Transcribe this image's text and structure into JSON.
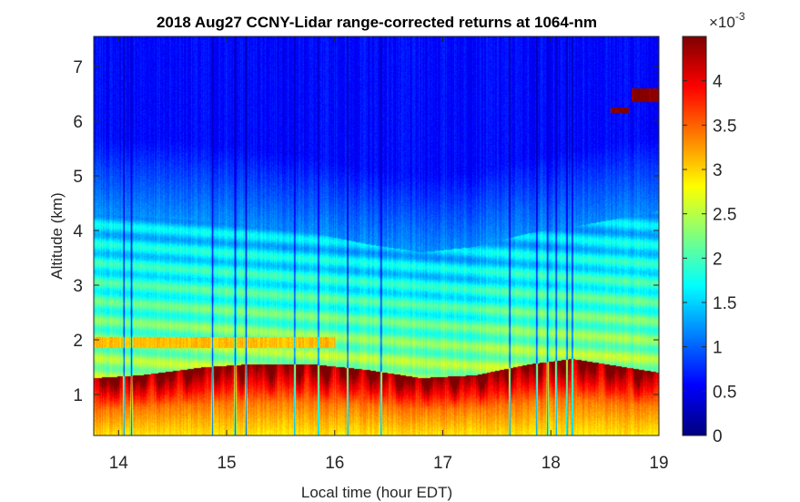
{
  "chart_data": {
    "type": "heatmap",
    "title": "2018 Aug27 CCNY-Lidar range-corrected returns at 1064-nm",
    "xlabel": "Local time (hour EDT)",
    "ylabel": "Altitude (km)",
    "xlim": [
      13.77,
      19.0
    ],
    "ylim": [
      0.25,
      7.55
    ],
    "x_ticks": [
      14,
      15,
      16,
      17,
      18,
      19
    ],
    "y_ticks": [
      1,
      2,
      3,
      4,
      5,
      6,
      7
    ],
    "colorbar": {
      "colormap": "jet",
      "range": [
        0,
        0.0045
      ],
      "tick_values": [
        0,
        0.5,
        1,
        1.5,
        2,
        2.5,
        3,
        3.5,
        4
      ],
      "tick_labels": [
        "0",
        "0.5",
        "1",
        "1.5",
        "2",
        "2.5",
        "3",
        "3.5",
        "4"
      ],
      "multiplier_base": "×10",
      "multiplier_exponent": "-3"
    },
    "features": {
      "boundary_layer_top_km": [
        [
          13.77,
          1.3
        ],
        [
          14.2,
          1.35
        ],
        [
          14.8,
          1.5
        ],
        [
          15.2,
          1.55
        ],
        [
          15.8,
          1.55
        ],
        [
          16.3,
          1.45
        ],
        [
          16.8,
          1.3
        ],
        [
          17.3,
          1.35
        ],
        [
          17.8,
          1.55
        ],
        [
          18.2,
          1.65
        ],
        [
          19.0,
          1.4
        ]
      ],
      "aerosol_layer_top_km": [
        [
          13.77,
          4.3
        ],
        [
          14.5,
          4.25
        ],
        [
          15.2,
          4.1
        ],
        [
          15.8,
          3.95
        ],
        [
          16.3,
          3.75
        ],
        [
          16.8,
          3.6
        ],
        [
          17.3,
          3.7
        ],
        [
          17.8,
          3.95
        ],
        [
          18.3,
          4.1
        ],
        [
          19.0,
          4.35
        ]
      ],
      "elevated_layer": {
        "t_start": 13.77,
        "t_end": 16.0,
        "altitude_km": [
          1.85,
          2.05
        ],
        "value": 0.0031
      },
      "cloud_returns": [
        {
          "t_start": 18.75,
          "t_end": 19.0,
          "altitude_km": [
            6.35,
            6.6
          ],
          "value": 0.0045
        },
        {
          "t_start": 18.55,
          "t_end": 18.72,
          "altitude_km": [
            6.15,
            6.25
          ],
          "value": 0.0045
        }
      ],
      "signal_dropouts_hours": [
        14.05,
        14.12,
        14.87,
        15.08,
        15.18,
        15.63,
        15.85,
        16.12,
        16.43,
        17.62,
        17.87,
        17.97,
        18.05,
        18.15,
        18.2
      ]
    }
  }
}
